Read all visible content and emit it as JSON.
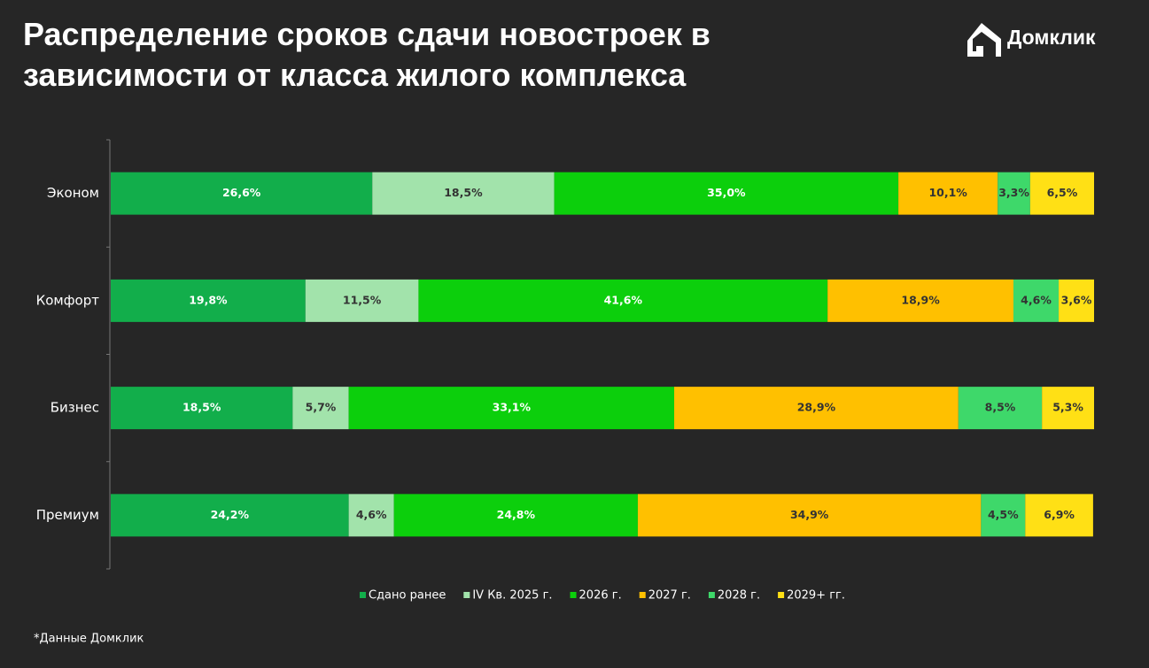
{
  "chart_data": {
    "type": "stacked-bar-horizontal",
    "title": "Распределение сроков сдачи новостроек в зависимости от класса жилого комплекса",
    "brand": "Домклик",
    "footnote": "*Данные Домклик",
    "categories": [
      "Эконом",
      "Комфорт",
      "Бизнес",
      "Премиум"
    ],
    "xlim": [
      0,
      100
    ],
    "legend": "bottom",
    "series": [
      {
        "name": "Сдано ранее",
        "color": "#12ae4b",
        "values": [
          26.6,
          19.8,
          18.5,
          24.2
        ],
        "value_labels": [
          "26,6%",
          "19,8%",
          "18,5%",
          "24,2%"
        ]
      },
      {
        "name": "IV Кв. 2025 г.",
        "color": "#a2e3ab",
        "values": [
          18.5,
          11.5,
          5.7,
          4.6
        ],
        "value_labels": [
          "18,5%",
          "11,5%",
          "5,7%",
          "4,6%"
        ]
      },
      {
        "name": "2026 г.",
        "color": "#0ccf0c",
        "values": [
          35.0,
          41.6,
          33.1,
          24.8
        ],
        "value_labels": [
          "35,0%",
          "41,6%",
          "33,1%",
          "24,8%"
        ]
      },
      {
        "name": "2027 г.",
        "color": "#ffc000",
        "values": [
          10.1,
          18.9,
          28.9,
          34.9
        ],
        "value_labels": [
          "10,1%",
          "18,9%",
          "28,9%",
          "34,9%"
        ]
      },
      {
        "name": "2028 г.",
        "color": "#3ed86a",
        "values": [
          3.3,
          4.6,
          8.5,
          4.5
        ],
        "value_labels": [
          "3,3%",
          "4,6%",
          "8,5%",
          "4,5%"
        ]
      },
      {
        "name": "2029+ гг.",
        "color": "#ffe015",
        "values": [
          6.5,
          3.6,
          5.3,
          6.9
        ],
        "value_labels": [
          "6,5%",
          "3,6%",
          "5,3%",
          "6,9%"
        ]
      }
    ]
  }
}
